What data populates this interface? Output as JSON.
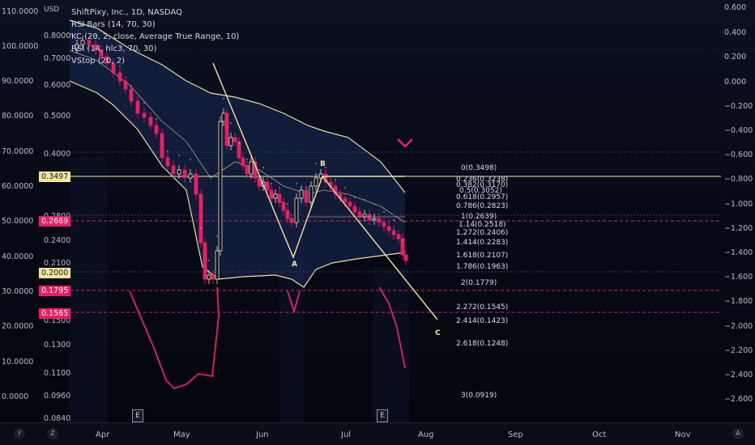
{
  "legend": {
    "title": "ShiftPixy, Inc., 1D, NASDAQ",
    "indicators": [
      "RSI Bars (14, 70, 30)",
      "KC (20, 2, close, Average True Range, 10)",
      "RSI (14, hlc3, 70, 30)",
      "VStop (20, 2)"
    ]
  },
  "price_axis": {
    "currency": "USD",
    "outer_labels": [
      "110.0000",
      "100.0000",
      "90.0000",
      "80.0000",
      "70.0000",
      "60.0000",
      "50.0000",
      "40.0000",
      "30.0000",
      "20.0000",
      "10.0000",
      "0.0000"
    ],
    "inner_labels": [
      "0.8000",
      "0.7000",
      "0.6000",
      "0.5000",
      "0.4000",
      "0.2800",
      "0.2400",
      "0.2100",
      "0.1500",
      "0.1300",
      "0.1100",
      "0.0960",
      "0.0840"
    ],
    "tags": [
      {
        "text": "0.3497",
        "bg": "#f2e6a0",
        "fg": "#1a1a1a"
      },
      {
        "text": "0.2669",
        "bg": "#e91e63",
        "fg": "#ffffff"
      },
      {
        "text": "0.2000",
        "bg": "#f2e6a0",
        "fg": "#1a1a1a"
      },
      {
        "text": "0.1795",
        "bg": "#e91e63",
        "fg": "#ffffff"
      },
      {
        "text": "0.1565",
        "bg": "#e91e63",
        "fg": "#ffffff"
      }
    ]
  },
  "right_axis": {
    "labels": [
      "0.600",
      "0.400",
      "0.200",
      "0.000",
      "−0.200",
      "−0.400",
      "−0.600",
      "−0.800",
      "−1.000",
      "−1.200",
      "−1.400",
      "−1.600",
      "−1.800",
      "−2.000",
      "−2.200",
      "−2.400",
      "−2.600"
    ]
  },
  "time_axis": {
    "months": [
      "Apr",
      "May",
      "Jun",
      "Jul",
      "Aug",
      "Sep",
      "Oct",
      "Nov"
    ]
  },
  "bottom_circles": [
    "Y",
    "Z",
    "A"
  ],
  "earnings_markers": [
    "E",
    "E"
  ],
  "wave_labels": [
    "A",
    "B",
    "C"
  ],
  "fib_levels": [
    {
      "label": "0(0.3498)",
      "value": 0.3498
    },
    {
      "label": "0.236(0.3238)",
      "value": 0.3238
    },
    {
      "label": "0.382(0.3170)",
      "value": 0.317
    },
    {
      "label": "0.5(0.3052)",
      "value": 0.3052
    },
    {
      "label": "0.618(0.2957)",
      "value": 0.2957
    },
    {
      "label": "0.786(0.2823)",
      "value": 0.2823
    },
    {
      "label": "1(0.2639)",
      "value": 0.2639
    },
    {
      "label": "1.14(0.2518)",
      "value": 0.2518
    },
    {
      "label": "1.272(0.2406)",
      "value": 0.2406
    },
    {
      "label": "1.414(0.2283)",
      "value": 0.2283
    },
    {
      "label": "1.618(0.2107)",
      "value": 0.2107
    },
    {
      "label": "1.786(0.1963)",
      "value": 0.1963
    },
    {
      "label": "2(0.1779)",
      "value": 0.1779
    },
    {
      "label": "2.272(0.1545)",
      "value": 0.1545
    },
    {
      "label": "2.414(0.1423)",
      "value": 0.1423
    },
    {
      "label": "2.618(0.1248)",
      "value": 0.1248
    },
    {
      "label": "3(0.0919)",
      "value": 0.0919
    }
  ],
  "colors": {
    "fib_line": "#f2e6a0",
    "stop_line": "#e91e63",
    "rsi_line": "#e91e63",
    "kc_band": "#e8dfa0",
    "kc_fill": "#1a2a55",
    "candle_up": "#e9e6c8",
    "candle_down": "#e91e63"
  }
}
